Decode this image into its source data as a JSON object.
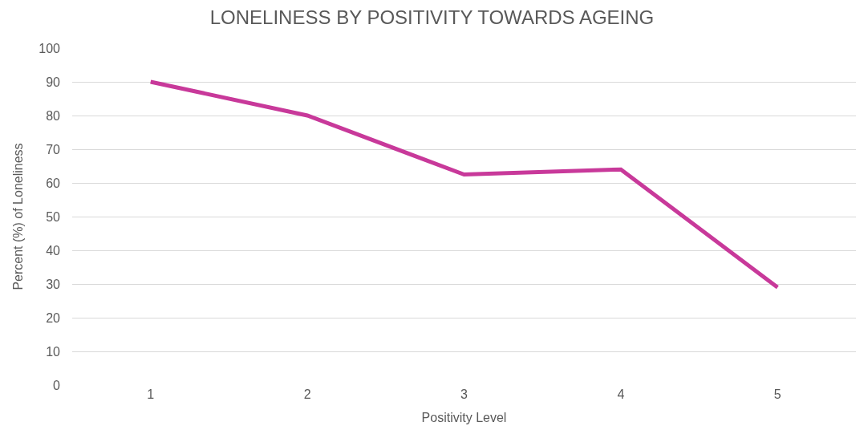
{
  "chart_data": {
    "type": "line",
    "title": "LONELINESS BY POSITIVITY TOWARDS AGEING",
    "xlabel": "Positivity Level",
    "ylabel": "Percent (%) of Loneliness",
    "categories": [
      "1",
      "2",
      "3",
      "4",
      "5"
    ],
    "series": [
      {
        "color": "#c8399a",
        "values": [
          90,
          80,
          62.5,
          64,
          29
        ]
      }
    ],
    "ylim": [
      0,
      100
    ],
    "yticks": [
      0,
      10,
      20,
      30,
      40,
      50,
      60,
      70,
      80,
      90,
      100
    ],
    "grid": "y",
    "marker": "none",
    "line_style": "solid"
  }
}
